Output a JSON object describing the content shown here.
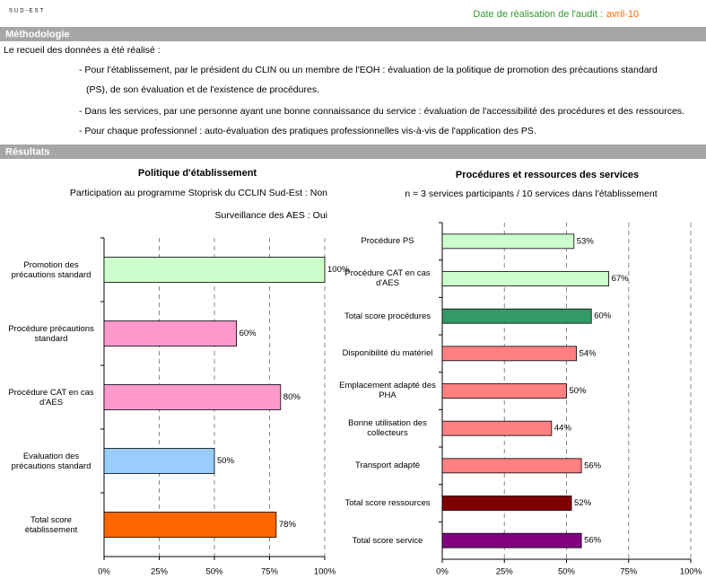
{
  "header": {
    "logo": "SUD-EST",
    "date_label": "Date de réalisation de l'audit :",
    "date": "avril-10"
  },
  "methodology": {
    "title": "Méthodologie",
    "intro": "Le recueil des données a été réalisé :",
    "lines": [
      "- Pour l'établissement, par le président du CLIN ou un membre de l'EOH : évaluation de la politique de promotion des précautions standard",
      "(PS), de son évaluation et de l'existence de procédures.",
      "- Dans les services, par une personne ayant une bonne connaissance du service : évaluation de l'accessibilité des procédures et des ressources.",
      "- Pour chaque professionnel : auto-évaluation des pratiques professionnelles vis-à-vis de l'application des PS."
    ]
  },
  "results": {
    "title": "Résultats"
  },
  "chart_data": [
    {
      "type": "hbar",
      "title": "Politique d'établissement",
      "subtitle": [
        "Participation au programme Stoprisk du CCLIN Sud-Est : Non",
        "Surveillance des AES : Oui"
      ],
      "categories": [
        "Promotion des précautions standard",
        "Procédure précautions standard",
        "Procédure CAT en cas d'AES",
        "Evaluation des précautions standard",
        "Total score établissement"
      ],
      "values": [
        100,
        60,
        80,
        50,
        78
      ],
      "value_labels": [
        "100%",
        "60%",
        "80%",
        "50%",
        "78%"
      ],
      "colors": [
        "#ccffcc",
        "#ff99cc",
        "#ff99cc",
        "#99ccff",
        "#ff6600"
      ],
      "xlim": [
        0,
        100
      ],
      "xticks": [
        {
          "value": 0,
          "label": "0%"
        },
        {
          "value": 25,
          "label": "25%"
        },
        {
          "value": 50,
          "label": "50%"
        },
        {
          "value": 75,
          "label": "75%"
        },
        {
          "value": 100,
          "label": "100%"
        }
      ],
      "grid": true
    },
    {
      "type": "hbar",
      "title": "Procédures et ressources des services",
      "subtitle": [
        "n = 3 services participants / 10 services dans l'établissement"
      ],
      "categories": [
        "Procédure PS",
        "Procédure CAT en cas d'AES",
        "Total score procédures",
        "Disponibilité du matériel",
        "Emplacement adapté des PHA",
        "Bonne utilisation des collecteurs",
        "Transport adapté",
        "Total score ressources",
        "Total score service"
      ],
      "values": [
        53,
        67,
        60,
        54,
        50,
        44,
        56,
        52,
        56
      ],
      "value_labels": [
        "53%",
        "67%",
        "60%",
        "54%",
        "50%",
        "44%",
        "56%",
        "52%",
        "56%"
      ],
      "colors": [
        "#ccffcc",
        "#ccffcc",
        "#339966",
        "#ff8080",
        "#ff8080",
        "#ff8080",
        "#ff8080",
        "#800000",
        "#800080"
      ],
      "xlim": [
        0,
        100
      ],
      "xticks": [
        {
          "value": 0,
          "label": "0%"
        },
        {
          "value": 25,
          "label": "25%"
        },
        {
          "value": 50,
          "label": "50%"
        },
        {
          "value": 75,
          "label": "75%"
        },
        {
          "value": 100,
          "label": "100%"
        }
      ],
      "grid": true
    }
  ]
}
